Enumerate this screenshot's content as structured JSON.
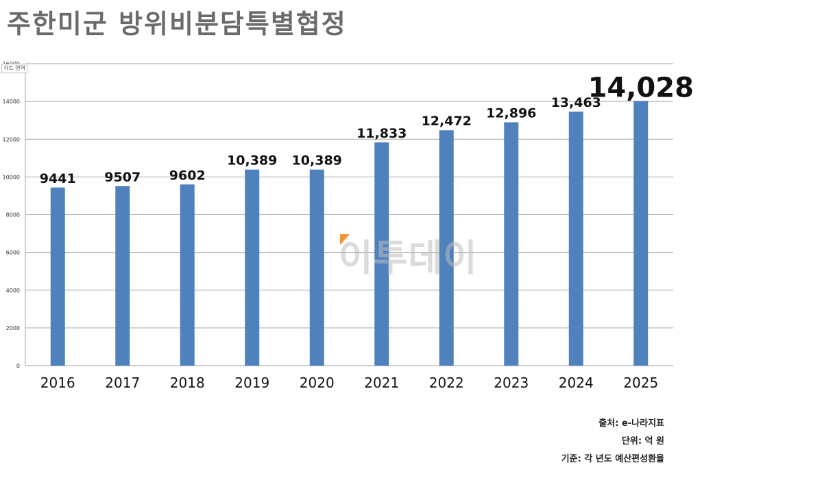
{
  "title": "주한미군  방위비분담특별협정",
  "chart_area_label": "차트 영역",
  "watermark": "이투데이",
  "notes": {
    "source": "출처: e-나라지표",
    "unit": "단위: 억 원",
    "basis": "기준: 각 년도 예산편성환율"
  },
  "colors": {
    "bar": "#4f81bd",
    "grid": "#a6a6a6",
    "title": "#6b6b6b",
    "watermark_accent": "#f08a24"
  },
  "chart_data": {
    "type": "bar",
    "title": "주한미군  방위비분담특별협정",
    "categories": [
      "2016",
      "2017",
      "2018",
      "2019",
      "2020",
      "2021",
      "2022",
      "2023",
      "2024",
      "2025"
    ],
    "values": [
      9441,
      9507,
      9602,
      10389,
      10389,
      11833,
      12472,
      12896,
      13463,
      14028
    ],
    "data_labels": [
      "9441",
      "9507",
      "9602",
      "10,389",
      "10,389",
      "11,833",
      "12,472",
      "12,896",
      "13,463",
      "14,028"
    ],
    "ylim": [
      0,
      16000
    ],
    "yticks": [
      0,
      2000,
      4000,
      6000,
      8000,
      10000,
      12000,
      14000,
      16000
    ],
    "xlabel": "",
    "ylabel": "",
    "grid": true,
    "legend": "none"
  }
}
